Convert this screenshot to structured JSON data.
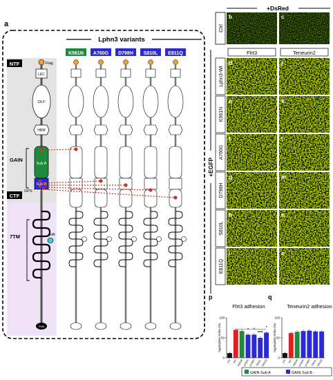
{
  "panel_a": {
    "letter": "a",
    "title": "Lphn3 variants",
    "domain_labels": {
      "ntf": "NTF",
      "ctf": "CTF",
      "gain": "GAIN",
      "seventm": "7TM",
      "gps": "GPS"
    },
    "module_labels": {
      "flag": "Flag",
      "lec": "LEC",
      "olf": "OLF",
      "hrm": "HRM",
      "sub_a": "Sub A",
      "sub_b": "Sub B",
      "ha": "HA",
      "pbm": "PBM"
    },
    "variants": [
      {
        "label": "K561N",
        "color": "#1f8a3c"
      },
      {
        "label": "A760G",
        "color": "#2a2ad0"
      },
      {
        "label": "D798H",
        "color": "#2a2ad0"
      },
      {
        "label": "S810L",
        "color": "#2a2ad0"
      },
      {
        "label": "E811Q",
        "color": "#2a2ad0"
      }
    ],
    "colors": {
      "sub_a": "#1f8a3c",
      "sub_b": "#2a2ad0",
      "ntf_bg": "#e3e3e3",
      "ctf_bg": "#f0e2f7",
      "mutation": "#c0392b"
    }
  },
  "micrographs": {
    "dsred_header": "+DsRed",
    "egfp_label": "+EGFP",
    "ctrl_label": "Ctrl",
    "top_row": [
      {
        "letter": "b"
      },
      {
        "letter": "c"
      }
    ],
    "column_headers": [
      "Flrt3",
      "Teneurin2"
    ],
    "row_labels": [
      "Lphn3-Wt",
      "K561N",
      "A760G",
      "D798H",
      "S810L",
      "E811Q"
    ],
    "flrt3_letters": [
      "d",
      "e",
      "f",
      "g",
      "h",
      "i"
    ],
    "ten2_letters": [
      "j",
      "k",
      "l",
      "m",
      "n",
      "o"
    ]
  },
  "chart_data": [
    {
      "type": "bar",
      "panel": "p",
      "title": "Flrt3 adhesion",
      "ylabel": "Aggregation Index (%)",
      "ylim": [
        0,
        100
      ],
      "yticks": [
        0,
        50,
        100
      ],
      "categories": [
        "Ctrl",
        "WT",
        "K561N",
        "A760G",
        "D798H",
        "S810L",
        "E811Q"
      ],
      "values": [
        12,
        70,
        67,
        58,
        58,
        50,
        63
      ],
      "bar_colors": [
        "#111111",
        "#e02020",
        "#1f8a3c",
        "#2a2ad0",
        "#2a2ad0",
        "#2a2ad0",
        "#2a2ad0"
      ],
      "significance": [
        "",
        "",
        "",
        "*",
        "*",
        "****",
        "*"
      ]
    },
    {
      "type": "bar",
      "panel": "q",
      "title": "Teneurin2 adhesion",
      "ylabel": "Aggregation Index (%)",
      "ylim": [
        0,
        100
      ],
      "yticks": [
        0,
        50,
        100
      ],
      "categories": [
        "Ctrl",
        "WT",
        "K561N",
        "A760G",
        "D798H",
        "S810L",
        "E811Q"
      ],
      "values": [
        12,
        62,
        65,
        67,
        68,
        66,
        66
      ],
      "bar_colors": [
        "#111111",
        "#e02020",
        "#1f8a3c",
        "#2a2ad0",
        "#2a2ad0",
        "#2a2ad0",
        "#2a2ad0"
      ],
      "significance": [
        "",
        "",
        "",
        "",
        "",
        "",
        ""
      ]
    }
  ],
  "legend": [
    {
      "label": "GAIN Sub A",
      "color": "#1f8a3c"
    },
    {
      "label": "GAIN Sub B",
      "color": "#2a2ad0"
    }
  ]
}
